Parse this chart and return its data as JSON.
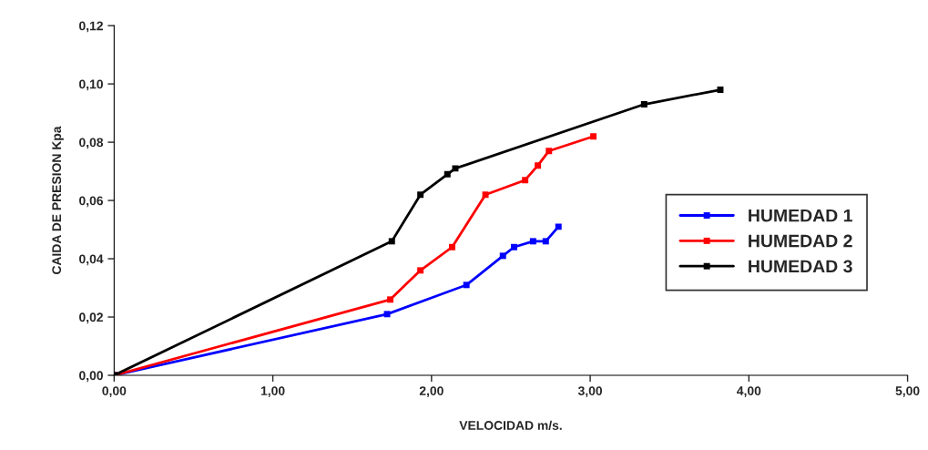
{
  "chart_data": {
    "type": "line",
    "xlabel": "VELOCIDAD m/s.",
    "ylabel": "CAIDA DE PRESION Kpa",
    "xlim": [
      0,
      5
    ],
    "xticks": [
      {
        "value": 0,
        "label": "0,00"
      },
      {
        "value": 1,
        "label": "1,00"
      },
      {
        "value": 2,
        "label": "2,00"
      },
      {
        "value": 3,
        "label": "3,00"
      },
      {
        "value": 4,
        "label": "4,00"
      },
      {
        "value": 5,
        "label": "5,00"
      }
    ],
    "ylim": [
      0,
      0.12
    ],
    "yticks": [
      {
        "value": 0,
        "label": "0,00"
      },
      {
        "value": 0.02,
        "label": "0,02"
      },
      {
        "value": 0.04,
        "label": "0,04"
      },
      {
        "value": 0.06,
        "label": "0,06"
      },
      {
        "value": 0.08,
        "label": "0,08"
      },
      {
        "value": 0.1,
        "label": "0,10"
      },
      {
        "value": 0.12,
        "label": "0,12"
      }
    ],
    "marker": "square",
    "legend": "right",
    "grid": false,
    "series": [
      {
        "name": "HUMEDAD 1",
        "color": "#0000ff",
        "x": [
          0,
          1.72,
          2.22,
          2.45,
          2.52,
          2.64,
          2.72,
          2.8
        ],
        "values": [
          0,
          0.021,
          0.031,
          0.041,
          0.044,
          0.046,
          0.046,
          0.051
        ]
      },
      {
        "name": "HUMEDAD 2",
        "color": "#ff0000",
        "x": [
          0,
          1.74,
          1.93,
          2.13,
          2.34,
          2.59,
          2.67,
          2.74,
          3.02
        ],
        "values": [
          0,
          0.026,
          0.036,
          0.044,
          0.062,
          0.067,
          0.072,
          0.077,
          0.082
        ]
      },
      {
        "name": "HUMEDAD 3",
        "color": "#000000",
        "x": [
          0,
          1.75,
          1.93,
          2.1,
          2.15,
          3.34,
          3.82
        ],
        "values": [
          0,
          0.046,
          0.062,
          0.069,
          0.071,
          0.093,
          0.098
        ]
      }
    ]
  }
}
